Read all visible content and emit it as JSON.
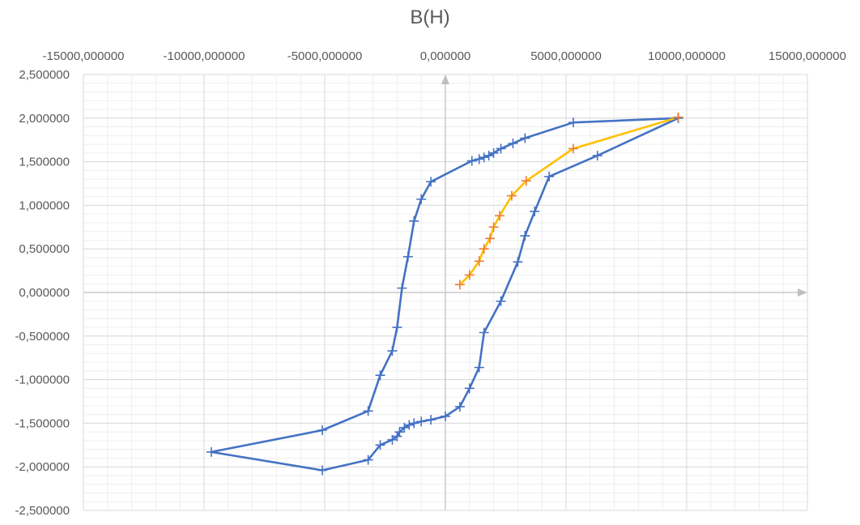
{
  "chart_data": {
    "type": "scatter",
    "title": "B(H)",
    "xlabel": "",
    "ylabel": "",
    "xlim": [
      -15000,
      15000
    ],
    "ylim": [
      -2.5,
      2.5
    ],
    "x_ticks": [
      "-15000,000000",
      "-10000,000000",
      "-5000,000000",
      "0,000000",
      "5000,000000",
      "10000,000000",
      "15000,000000"
    ],
    "y_ticks": [
      "2,500000",
      "2,000000",
      "1,500000",
      "1,000000",
      "0,500000",
      "0,000000",
      "-0,500000",
      "-1,000000",
      "-1,500000",
      "-2,000000",
      "-2,500000"
    ],
    "grid": true,
    "legend": "none",
    "series": [
      {
        "color": "#4472C4",
        "marker": "plus",
        "points": [
          [
            9650,
            2.0
          ],
          [
            5300,
            1.95
          ],
          [
            3300,
            1.77
          ],
          [
            2800,
            1.71
          ],
          [
            2300,
            1.65
          ],
          [
            2000,
            1.6
          ],
          [
            1800,
            1.57
          ],
          [
            1600,
            1.55
          ],
          [
            1400,
            1.53
          ],
          [
            1100,
            1.51
          ],
          [
            -600,
            1.27
          ],
          [
            -1000,
            1.07
          ],
          [
            -1300,
            0.82
          ],
          [
            -1550,
            0.41
          ],
          [
            -1800,
            0.05
          ],
          [
            -2000,
            -0.4
          ],
          [
            -2200,
            -0.67
          ],
          [
            -2700,
            -0.95
          ],
          [
            -3200,
            -1.36
          ],
          [
            -5100,
            -1.58
          ],
          [
            -9700,
            -1.83
          ],
          [
            -5100,
            -2.04
          ],
          [
            -3200,
            -1.92
          ],
          [
            -2700,
            -1.75
          ],
          [
            -2200,
            -1.69
          ],
          [
            -2000,
            -1.65
          ],
          [
            -1900,
            -1.6
          ],
          [
            -1700,
            -1.55
          ],
          [
            -1500,
            -1.52
          ],
          [
            -1300,
            -1.5
          ],
          [
            -1000,
            -1.48
          ],
          [
            -600,
            -1.46
          ],
          [
            0,
            -1.42
          ],
          [
            600,
            -1.31
          ],
          [
            1000,
            -1.1
          ],
          [
            1400,
            -0.86
          ],
          [
            1600,
            -0.46
          ],
          [
            2300,
            -0.1
          ],
          [
            3000,
            0.35
          ],
          [
            3300,
            0.65
          ],
          [
            3700,
            0.93
          ],
          [
            4300,
            1.33
          ],
          [
            6300,
            1.57
          ],
          [
            9650,
            2.0
          ]
        ]
      },
      {
        "color": "#FFC000",
        "marker_color": "#ED7D31",
        "marker": "plus",
        "points": [
          [
            600,
            0.09
          ],
          [
            1000,
            0.2
          ],
          [
            1400,
            0.36
          ],
          [
            1600,
            0.5
          ],
          [
            1850,
            0.62
          ],
          [
            2000,
            0.75
          ],
          [
            2250,
            0.88
          ],
          [
            2750,
            1.11
          ],
          [
            3350,
            1.28
          ],
          [
            5300,
            1.65
          ],
          [
            9650,
            2.01
          ]
        ]
      }
    ]
  }
}
